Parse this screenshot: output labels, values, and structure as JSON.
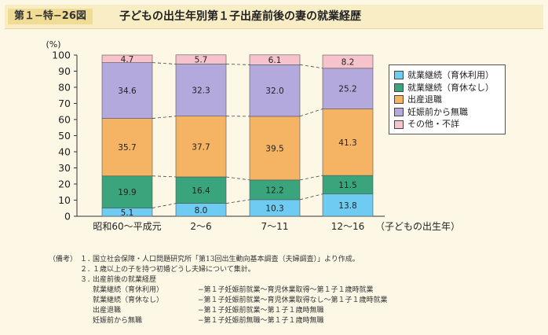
{
  "figure": {
    "number": "第１−特−26図",
    "title": "子どもの出生年別第１子出産前後の妻の就業経歴"
  },
  "chart_data": {
    "type": "bar",
    "stacked": true,
    "y_unit_label": "(%)",
    "x_unit_label": "（子どもの出生年）",
    "ylim": [
      0,
      100
    ],
    "y_ticks": [
      "0",
      "10",
      "20",
      "30",
      "40",
      "50",
      "60",
      "70",
      "80",
      "90",
      "100"
    ],
    "categories": [
      "昭和60〜平成元",
      "2〜6",
      "7〜11",
      "12〜16"
    ],
    "series": [
      {
        "name": "就業継続（育休利用）",
        "color": "#6ecbf2",
        "values": [
          5.1,
          8.0,
          10.3,
          13.8
        ]
      },
      {
        "name": "就業継続（育休なし）",
        "color": "#3aa57c",
        "values": [
          19.9,
          16.4,
          12.2,
          11.5
        ]
      },
      {
        "name": "出産退職",
        "color": "#f5b464",
        "values": [
          35.7,
          37.7,
          39.5,
          41.3
        ]
      },
      {
        "name": "妊娠前から無職",
        "color": "#b3a9dc",
        "values": [
          34.6,
          32.3,
          32.0,
          25.2
        ]
      },
      {
        "name": "その他・不詳",
        "color": "#f6c2cc",
        "values": [
          4.7,
          5.7,
          6.1,
          8.2
        ]
      }
    ],
    "legend_position": "right",
    "connector_lines": "dashed"
  },
  "notes": {
    "label": "（備考）",
    "items": [
      {
        "num": "１．",
        "text": "国立社会保障・人口問題研究所「第13回出生動向基本調査（夫婦調査）」より作成。"
      },
      {
        "num": "２．",
        "text": "１歳以上の子を持つ初婚どうし夫婦について集計。"
      },
      {
        "num": "３．",
        "text": "出産前後の就業経歴"
      }
    ],
    "definitions": [
      {
        "term": "就業継続（育休利用）",
        "desc": "−第１子妊娠前就業〜育児休業取得〜第１子１歳時就業"
      },
      {
        "term": "就業継続（育休なし）",
        "desc": "−第１子妊娠前就業〜育児休業取得なし〜第１子１歳時就業"
      },
      {
        "term": "出産退職",
        "desc": "−第１子妊娠前就業〜第１子１歳時無職"
      },
      {
        "term": "妊娠前から無職",
        "desc": "−第１子妊娠前無職〜第１子１歳時無職"
      }
    ]
  }
}
